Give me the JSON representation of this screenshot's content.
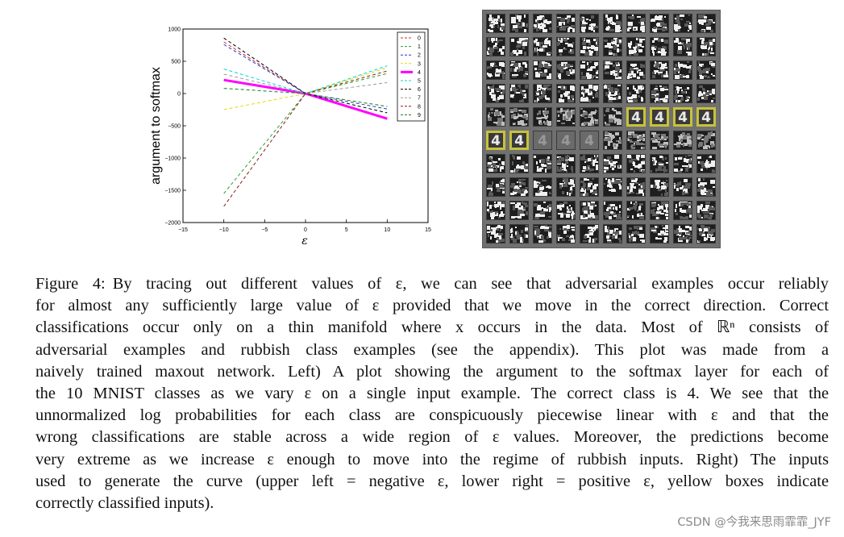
{
  "chart_data": {
    "type": "line",
    "title": "",
    "xlabel": "ε",
    "ylabel": "argument to softmax",
    "xlim": [
      -15,
      15
    ],
    "ylim": [
      -2000,
      1000
    ],
    "xticks": [
      -15,
      -10,
      -5,
      0,
      5,
      10,
      15
    ],
    "yticks": [
      1000,
      500,
      0,
      -500,
      -1000,
      -1500,
      -2000
    ],
    "xtick_labels": [
      "−15",
      "−10",
      "−5",
      "0",
      "5",
      "10",
      "15"
    ],
    "ytick_labels": [
      "1000",
      "500",
      "0",
      "−500",
      "−1000",
      "−1500",
      "−2000"
    ],
    "legend_position": "top-right",
    "x": [
      -10,
      0,
      10
    ],
    "series": [
      {
        "name": "0",
        "color": "#d62728",
        "dash": "dashed",
        "values": [
          800,
          0,
          -400
        ]
      },
      {
        "name": "1",
        "color": "#2ca02c",
        "dash": "dashed",
        "values": [
          -1550,
          0,
          310
        ]
      },
      {
        "name": "2",
        "color": "#1f3fbf",
        "dash": "dashed",
        "values": [
          760,
          0,
          -240
        ]
      },
      {
        "name": "3",
        "color": "#e6d800",
        "dash": "dashed",
        "values": [
          -250,
          0,
          400
        ]
      },
      {
        "name": "4",
        "color": "#ff00ff",
        "dash": "solid",
        "values": [
          210,
          0,
          -390
        ]
      },
      {
        "name": "5",
        "color": "#00d6d6",
        "dash": "dashed",
        "values": [
          380,
          0,
          430
        ]
      },
      {
        "name": "6",
        "color": "#000000",
        "dash": "dashed",
        "values": [
          860,
          0,
          -300
        ]
      },
      {
        "name": "7",
        "color": "#9a9a9a",
        "dash": "dashed",
        "values": [
          300,
          0,
          170
        ]
      },
      {
        "name": "8",
        "color": "#8b1a1a",
        "dash": "dashed",
        "values": [
          -1750,
          0,
          350
        ]
      },
      {
        "name": "9",
        "color": "#1a7a1a",
        "dash": "dashed",
        "values": [
          80,
          0,
          -200
        ]
      }
    ]
  },
  "image_grid": {
    "rows": 10,
    "cols": 10,
    "correct_label": "4",
    "correct_cells": [
      [
        4,
        6
      ],
      [
        4,
        7
      ],
      [
        4,
        8
      ],
      [
        4,
        9
      ],
      [
        5,
        0
      ],
      [
        5,
        1
      ]
    ],
    "faded_digit_cells": [
      [
        5,
        2
      ],
      [
        5,
        3
      ],
      [
        5,
        4
      ]
    ],
    "highlight_color": "#c7c23a"
  },
  "caption": {
    "label": "Figure 4:",
    "lines": [
      "By tracing out different values of ε, we can see that adversarial examples occur reliably",
      "for almost any sufficiently large value of ε provided that we move in the correct direction. Correct",
      "classifications occur only on a thin manifold where x occurs in the data. Most of ℝⁿ consists of",
      "adversarial examples and rubbish class examples (see the appendix). This plot was made from a",
      "naively trained maxout network. Left) A plot showing the argument to the softmax layer for each of",
      "the 10 MNIST classes as we vary ε on a single input example. The correct class is 4. We see that the",
      "unnormalized log probabilities for each class are conspicuously piecewise linear with ε and that the",
      "wrong classifications are stable across a wide region of ε values. Moreover, the predictions become",
      "very extreme as we increase ε enough to move into the regime of rubbish inputs. Right) The inputs",
      "used to generate the curve (upper left = negative ε, lower right = positive ε, yellow boxes indicate",
      "correctly classified inputs)."
    ]
  },
  "watermark": "CSDN @今我来思雨霏霏_JYF"
}
